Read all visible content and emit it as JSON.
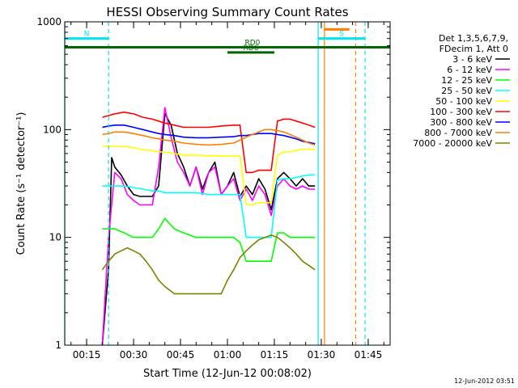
{
  "chart_data": {
    "type": "line",
    "title": "HESSI Observing Summary Count Rates",
    "xlabel": "Start Time (12-Jun-12 00:08:02)",
    "ylabel": "Count Rate (s⁻¹ detector⁻¹)",
    "yscale": "log",
    "xlim": [
      "00:08",
      "01:52"
    ],
    "ylim": [
      1,
      1000
    ],
    "x_ticks": [
      "00:15",
      "00:30",
      "00:45",
      "01:00",
      "01:15",
      "01:30",
      "01:45"
    ],
    "y_ticks": [
      "1",
      "10",
      "100",
      "1000"
    ],
    "grid": false,
    "legend_position": "right",
    "legend_header": [
      "Det 1,3,5,6,7,9,",
      "FDecim 1, Att 0"
    ],
    "timestamp": "12-Jun-2012 03:51",
    "flags": [
      {
        "label": "N",
        "start": "00:08",
        "end": "00:22",
        "level": 700,
        "color": "#00e5ee"
      },
      {
        "label": "S",
        "start": "01:29",
        "end": "01:44",
        "level": 700,
        "color": "#00e5ee"
      },
      {
        "label": "",
        "start": "01:31",
        "end": "01:39",
        "level": 850,
        "color": "#ff7f00"
      },
      {
        "label": "",
        "start": "00:08",
        "end": "01:52",
        "level": 580,
        "color": "#006400"
      },
      {
        "label": "RD0",
        "start": "01:02",
        "end": "01:14",
        "level": 580,
        "color": "#006400"
      },
      {
        "label": "RD6",
        "start": "01:00",
        "end": "01:15",
        "level": 520,
        "color": "#006400"
      }
    ],
    "vlines": [
      {
        "time": "00:08",
        "color": "#00e5ee",
        "style": "solid"
      },
      {
        "time": "00:22",
        "color": "#00e5ee",
        "style": "dashed"
      },
      {
        "time": "01:29",
        "color": "#00e5ee",
        "style": "solid"
      },
      {
        "time": "01:31",
        "color": "#ff7f00",
        "style": "solid"
      },
      {
        "time": "01:41",
        "color": "#ff7f00",
        "style": "dashed"
      },
      {
        "time": "01:44",
        "color": "#00e5ee",
        "style": "dashed"
      }
    ],
    "series": [
      {
        "name": "3 - 6 keV",
        "color": "#000000",
        "x": [
          "00:20",
          "00:22",
          "00:23",
          "00:24",
          "00:26",
          "00:28",
          "00:30",
          "00:32",
          "00:34",
          "00:36",
          "00:38",
          "00:40",
          "00:42",
          "00:44",
          "00:46",
          "00:48",
          "00:50",
          "00:52",
          "00:54",
          "00:56",
          "00:58",
          "01:00",
          "01:02",
          "01:04",
          "01:06",
          "01:08",
          "01:10",
          "01:12",
          "01:14",
          "01:16",
          "01:18",
          "01:20",
          "01:22",
          "01:24",
          "01:26",
          "01:28"
        ],
        "y": [
          1,
          5,
          55,
          45,
          38,
          30,
          25,
          24,
          24,
          24,
          30,
          140,
          110,
          60,
          45,
          30,
          45,
          28,
          40,
          50,
          25,
          30,
          40,
          24,
          30,
          25,
          35,
          28,
          18,
          35,
          40,
          35,
          30,
          35,
          30,
          30
        ]
      },
      {
        "name": "6 - 12 keV",
        "color": "#ff00ff",
        "x": [
          "00:20",
          "00:22",
          "00:24",
          "00:26",
          "00:28",
          "00:30",
          "00:32",
          "00:34",
          "00:36",
          "00:38",
          "00:40",
          "00:42",
          "00:44",
          "00:46",
          "00:48",
          "00:50",
          "00:52",
          "00:54",
          "00:56",
          "00:58",
          "01:00",
          "01:02",
          "01:04",
          "01:06",
          "01:08",
          "01:10",
          "01:12",
          "01:14",
          "01:16",
          "01:18",
          "01:20",
          "01:22",
          "01:24",
          "01:26",
          "01:28"
        ],
        "y": [
          1,
          10,
          40,
          35,
          25,
          22,
          20,
          20,
          20,
          45,
          160,
          85,
          50,
          40,
          30,
          45,
          25,
          40,
          45,
          25,
          30,
          35,
          22,
          28,
          22,
          30,
          25,
          16,
          30,
          35,
          30,
          28,
          30,
          28,
          28
        ]
      },
      {
        "name": "12 - 25 keV",
        "color": "#00ff00",
        "x": [
          "00:20",
          "00:22",
          "00:24",
          "00:27",
          "00:30",
          "00:33",
          "00:36",
          "00:38",
          "00:40",
          "00:43",
          "00:46",
          "00:50",
          "00:54",
          "00:58",
          "01:02",
          "01:04",
          "01:06",
          "01:08",
          "01:10",
          "01:12",
          "01:14",
          "01:16",
          "01:18",
          "01:20",
          "01:22",
          "01:24",
          "01:26",
          "01:28"
        ],
        "y": [
          12,
          12,
          12,
          11,
          10,
          10,
          10,
          12,
          15,
          12,
          11,
          10,
          10,
          10,
          10,
          9,
          6,
          6,
          6,
          6,
          6,
          11,
          11,
          10,
          10,
          10,
          10,
          10
        ]
      },
      {
        "name": "25 - 50 keV",
        "color": "#00ffff",
        "x": [
          "00:20",
          "00:22",
          "00:24",
          "00:27",
          "00:30",
          "00:33",
          "00:36",
          "00:38",
          "00:40",
          "00:43",
          "00:46",
          "00:50",
          "00:54",
          "00:58",
          "01:02",
          "01:04",
          "01:06",
          "01:08",
          "01:10",
          "01:12",
          "01:14",
          "01:16",
          "01:18",
          "01:20",
          "01:22",
          "01:24",
          "01:26",
          "01:28"
        ],
        "y": [
          30,
          30,
          30,
          30,
          29,
          28,
          27,
          27,
          26,
          26,
          26,
          26,
          25,
          25,
          25,
          25,
          10,
          10,
          10,
          10,
          10,
          34,
          35,
          35,
          36,
          37,
          38,
          38
        ]
      },
      {
        "name": "50 - 100 keV",
        "color": "#ffff00",
        "x": [
          "00:20",
          "00:22",
          "00:24",
          "00:27",
          "00:30",
          "00:33",
          "00:36",
          "00:38",
          "00:40",
          "00:43",
          "00:46",
          "00:50",
          "00:54",
          "00:58",
          "01:02",
          "01:04",
          "01:06",
          "01:08",
          "01:10",
          "01:12",
          "01:14",
          "01:16",
          "01:18",
          "01:20",
          "01:22",
          "01:24",
          "01:26",
          "01:28"
        ],
        "y": [
          70,
          70,
          70,
          70,
          68,
          65,
          64,
          62,
          62,
          60,
          58,
          58,
          57,
          57,
          57,
          57,
          20,
          20,
          21,
          21,
          21,
          58,
          62,
          62,
          64,
          66,
          66,
          65
        ]
      },
      {
        "name": "100 - 300 keV",
        "color": "#ff0000",
        "x": [
          "00:20",
          "00:22",
          "00:24",
          "00:27",
          "00:30",
          "00:33",
          "00:36",
          "00:38",
          "00:40",
          "00:43",
          "00:46",
          "00:50",
          "00:54",
          "00:58",
          "01:02",
          "01:04",
          "01:06",
          "01:08",
          "01:10",
          "01:12",
          "01:14",
          "01:16",
          "01:18",
          "01:20",
          "01:22",
          "01:24",
          "01:26",
          "01:28"
        ],
        "y": [
          130,
          135,
          140,
          145,
          140,
          130,
          125,
          120,
          115,
          110,
          105,
          105,
          105,
          108,
          110,
          110,
          40,
          40,
          42,
          42,
          42,
          120,
          125,
          125,
          120,
          115,
          110,
          105
        ]
      },
      {
        "name": "300 - 800 keV",
        "color": "#0000ff",
        "x": [
          "00:20",
          "00:22",
          "00:24",
          "00:27",
          "00:30",
          "00:33",
          "00:36",
          "00:38",
          "00:40",
          "00:43",
          "00:46",
          "00:50",
          "00:54",
          "00:58",
          "01:02",
          "01:04",
          "01:06",
          "01:08",
          "01:10",
          "01:12",
          "01:14",
          "01:16",
          "01:18",
          "01:20",
          "01:22",
          "01:24",
          "01:26",
          "01:28"
        ],
        "y": [
          105,
          108,
          110,
          110,
          105,
          100,
          95,
          92,
          90,
          88,
          85,
          84,
          84,
          85,
          86,
          88,
          88,
          90,
          92,
          92,
          92,
          90,
          88,
          85,
          82,
          78,
          76,
          74
        ]
      },
      {
        "name": "800 - 7000 keV",
        "color": "#ff7f00",
        "x": [
          "00:20",
          "00:22",
          "00:24",
          "00:27",
          "00:30",
          "00:33",
          "00:36",
          "00:38",
          "00:40",
          "00:43",
          "00:46",
          "00:50",
          "00:54",
          "00:58",
          "01:02",
          "01:04",
          "01:06",
          "01:08",
          "01:10",
          "01:12",
          "01:14",
          "01:16",
          "01:18",
          "01:20",
          "01:22",
          "01:24",
          "01:26",
          "01:28"
        ],
        "y": [
          90,
          92,
          95,
          95,
          92,
          88,
          84,
          82,
          80,
          78,
          75,
          73,
          72,
          73,
          75,
          80,
          85,
          90,
          95,
          100,
          100,
          98,
          95,
          90,
          85,
          80,
          75,
          72
        ]
      },
      {
        "name": "7000 - 20000 keV",
        "color": "#808000",
        "x": [
          "00:20",
          "00:22",
          "00:24",
          "00:26",
          "00:28",
          "00:30",
          "00:32",
          "00:34",
          "00:36",
          "00:38",
          "00:40",
          "00:43",
          "00:46",
          "00:50",
          "00:54",
          "00:58",
          "01:00",
          "01:02",
          "01:04",
          "01:06",
          "01:08",
          "01:10",
          "01:12",
          "01:14",
          "01:16",
          "01:18",
          "01:20",
          "01:22",
          "01:24",
          "01:26",
          "01:28"
        ],
        "y": [
          5,
          6,
          7,
          7.5,
          8,
          7.5,
          7,
          6,
          5,
          4,
          3.5,
          3,
          3,
          3,
          3,
          3,
          4,
          5,
          6.5,
          7.5,
          8.5,
          9.5,
          10,
          10.5,
          10,
          9,
          8,
          7,
          6,
          5.5,
          5
        ]
      }
    ]
  }
}
